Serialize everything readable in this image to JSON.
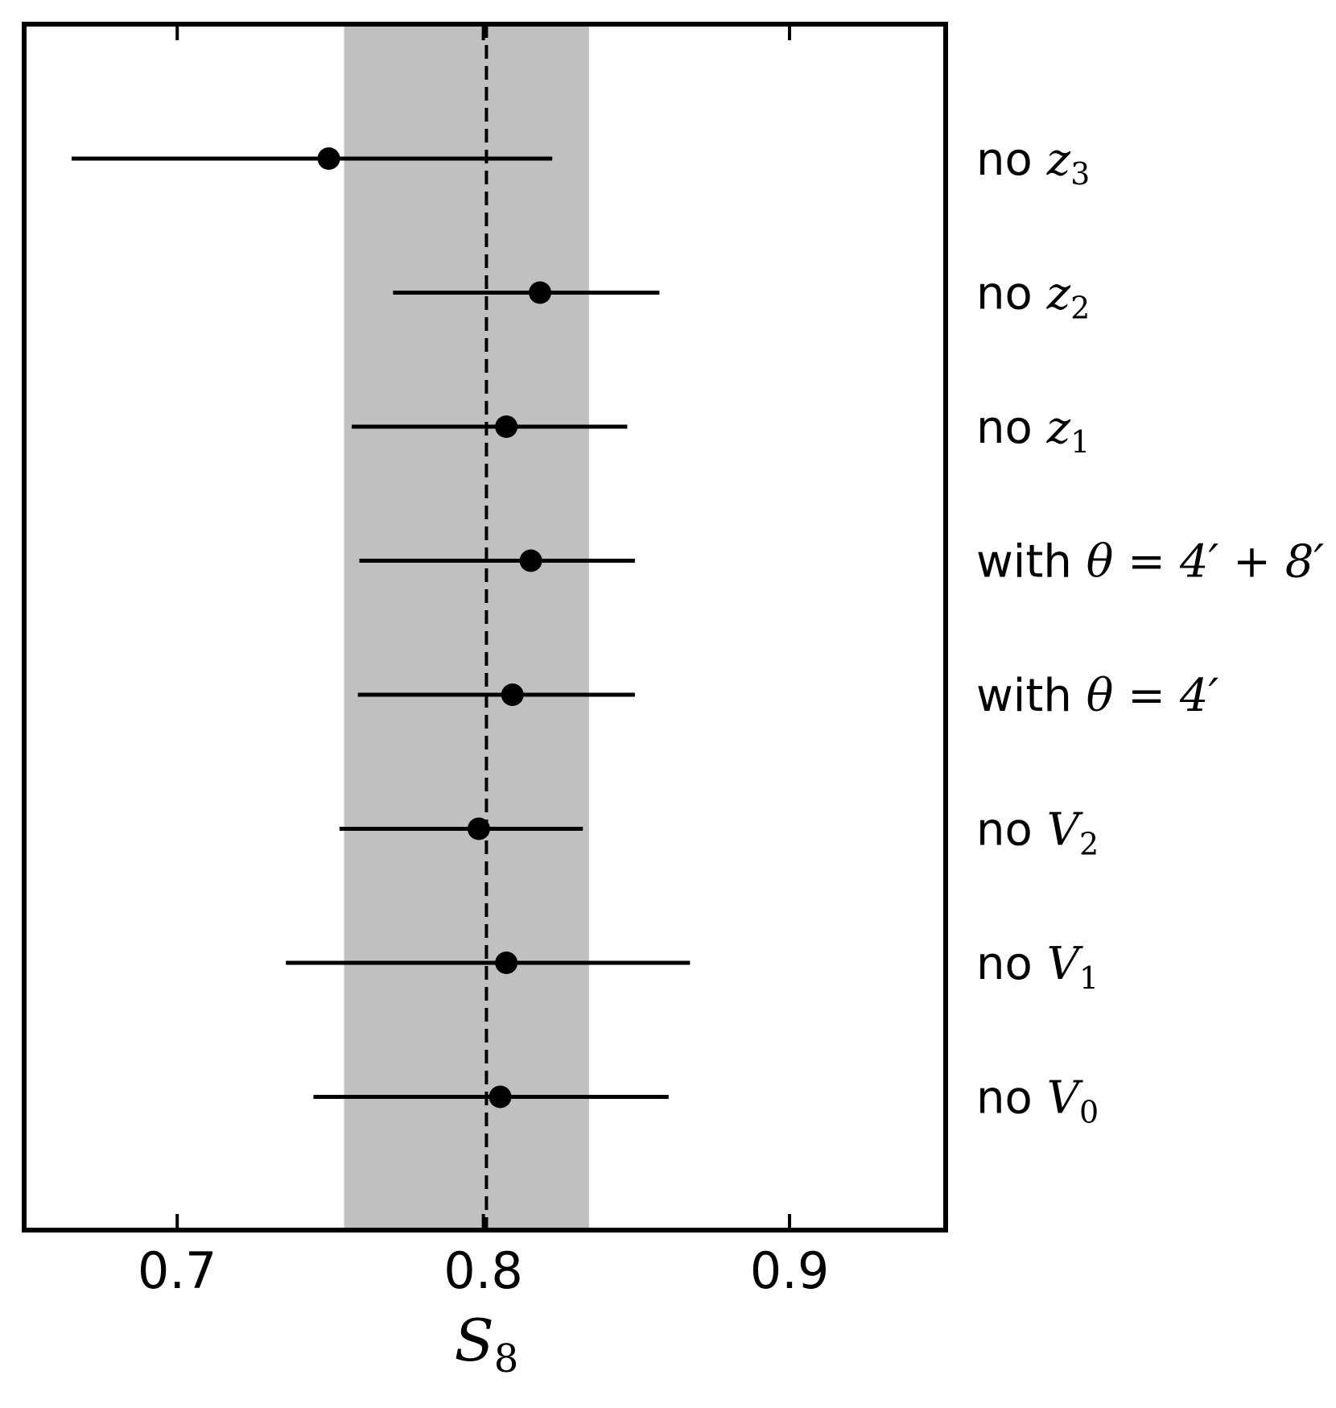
{
  "chart_data": {
    "type": "scatter",
    "xlabel": "S_8",
    "xlabel_main": "S",
    "xlabel_sub": "8",
    "xlim": [
      0.65,
      0.951
    ],
    "xticks": [
      "0.7",
      "0.8",
      "0.9"
    ],
    "xtick_values": [
      0.7,
      0.8,
      0.9
    ],
    "reference_value": 0.801,
    "reference_band": [
      0.7545,
      0.8345
    ],
    "grid": false,
    "legend": "none",
    "series": [
      {
        "label_prefix": "no",
        "label_math": "z",
        "label_sub": "3",
        "value": 0.7495,
        "err_low": 0.6655,
        "err_high": 0.8225
      },
      {
        "label_prefix": "no",
        "label_math": "z",
        "label_sub": "2",
        "value": 0.8185,
        "err_low": 0.7705,
        "err_high": 0.8575
      },
      {
        "label_prefix": "no",
        "label_math": "z",
        "label_sub": "1",
        "value": 0.8075,
        "err_low": 0.757,
        "err_high": 0.847
      },
      {
        "label_prefix": "with",
        "label_math": "θ = 4′ + 8′",
        "label_sub": "",
        "value": 0.8155,
        "err_low": 0.7595,
        "err_high": 0.8495
      },
      {
        "label_prefix": "with",
        "label_math": "θ = 4′",
        "label_sub": "",
        "value": 0.8095,
        "err_low": 0.759,
        "err_high": 0.8495
      },
      {
        "label_prefix": "no",
        "label_math": "V",
        "label_sub": "2",
        "value": 0.7985,
        "err_low": 0.753,
        "err_high": 0.8325
      },
      {
        "label_prefix": "no",
        "label_math": "V",
        "label_sub": "1",
        "value": 0.8075,
        "err_low": 0.7355,
        "err_high": 0.8675
      },
      {
        "label_prefix": "no",
        "label_math": "V",
        "label_sub": "0",
        "value": 0.8055,
        "err_low": 0.7445,
        "err_high": 0.8605
      }
    ],
    "colors": {
      "band": "#c0c0c0",
      "marker": "#000000",
      "line": "#000000"
    }
  }
}
